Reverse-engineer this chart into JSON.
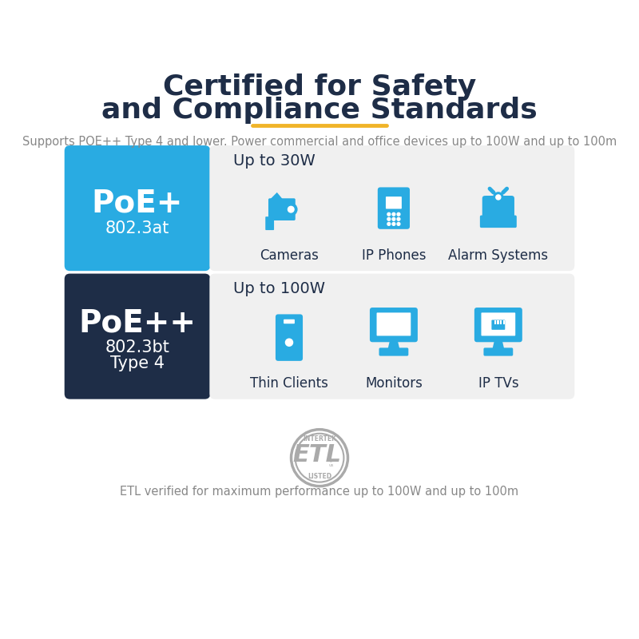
{
  "title_line1": "Certified for Safety",
  "title_line2": "and Compliance Standards",
  "title_color": "#1e2d47",
  "title_fontsize": 26,
  "underline_color": "#f0b429",
  "subtitle": "Supports POE++ Type 4 and lower. Power commercial and office devices up to 100W and up to 100m",
  "subtitle_color": "#888888",
  "subtitle_fontsize": 10.5,
  "poe_plus_label": "PoE+",
  "poe_plus_sub": "802.3at",
  "poe_plus_bg": "#29abe2",
  "poe_plus_text_color": "#ffffff",
  "poe_plusplus_label": "PoE++",
  "poe_plusplus_sub1": "802.3bt",
  "poe_plusplus_sub2": "Type 4",
  "poe_plusplus_bg": "#1e2d47",
  "poe_plusplus_text_color": "#ffffff",
  "row1_power": "Up to 30W",
  "row1_devices": [
    "Cameras",
    "IP Phones",
    "Alarm Systems"
  ],
  "row2_power": "Up to 100W",
  "row2_devices": [
    "Thin Clients",
    "Monitors",
    "IP TVs"
  ],
  "device_icon_color": "#29abe2",
  "row_bg_color": "#f0f0f0",
  "etl_text": "ETL verified for maximum performance up to 100W and up to 100m",
  "etl_text_color": "#888888",
  "etl_fontsize": 10.5,
  "background_color": "#ffffff"
}
